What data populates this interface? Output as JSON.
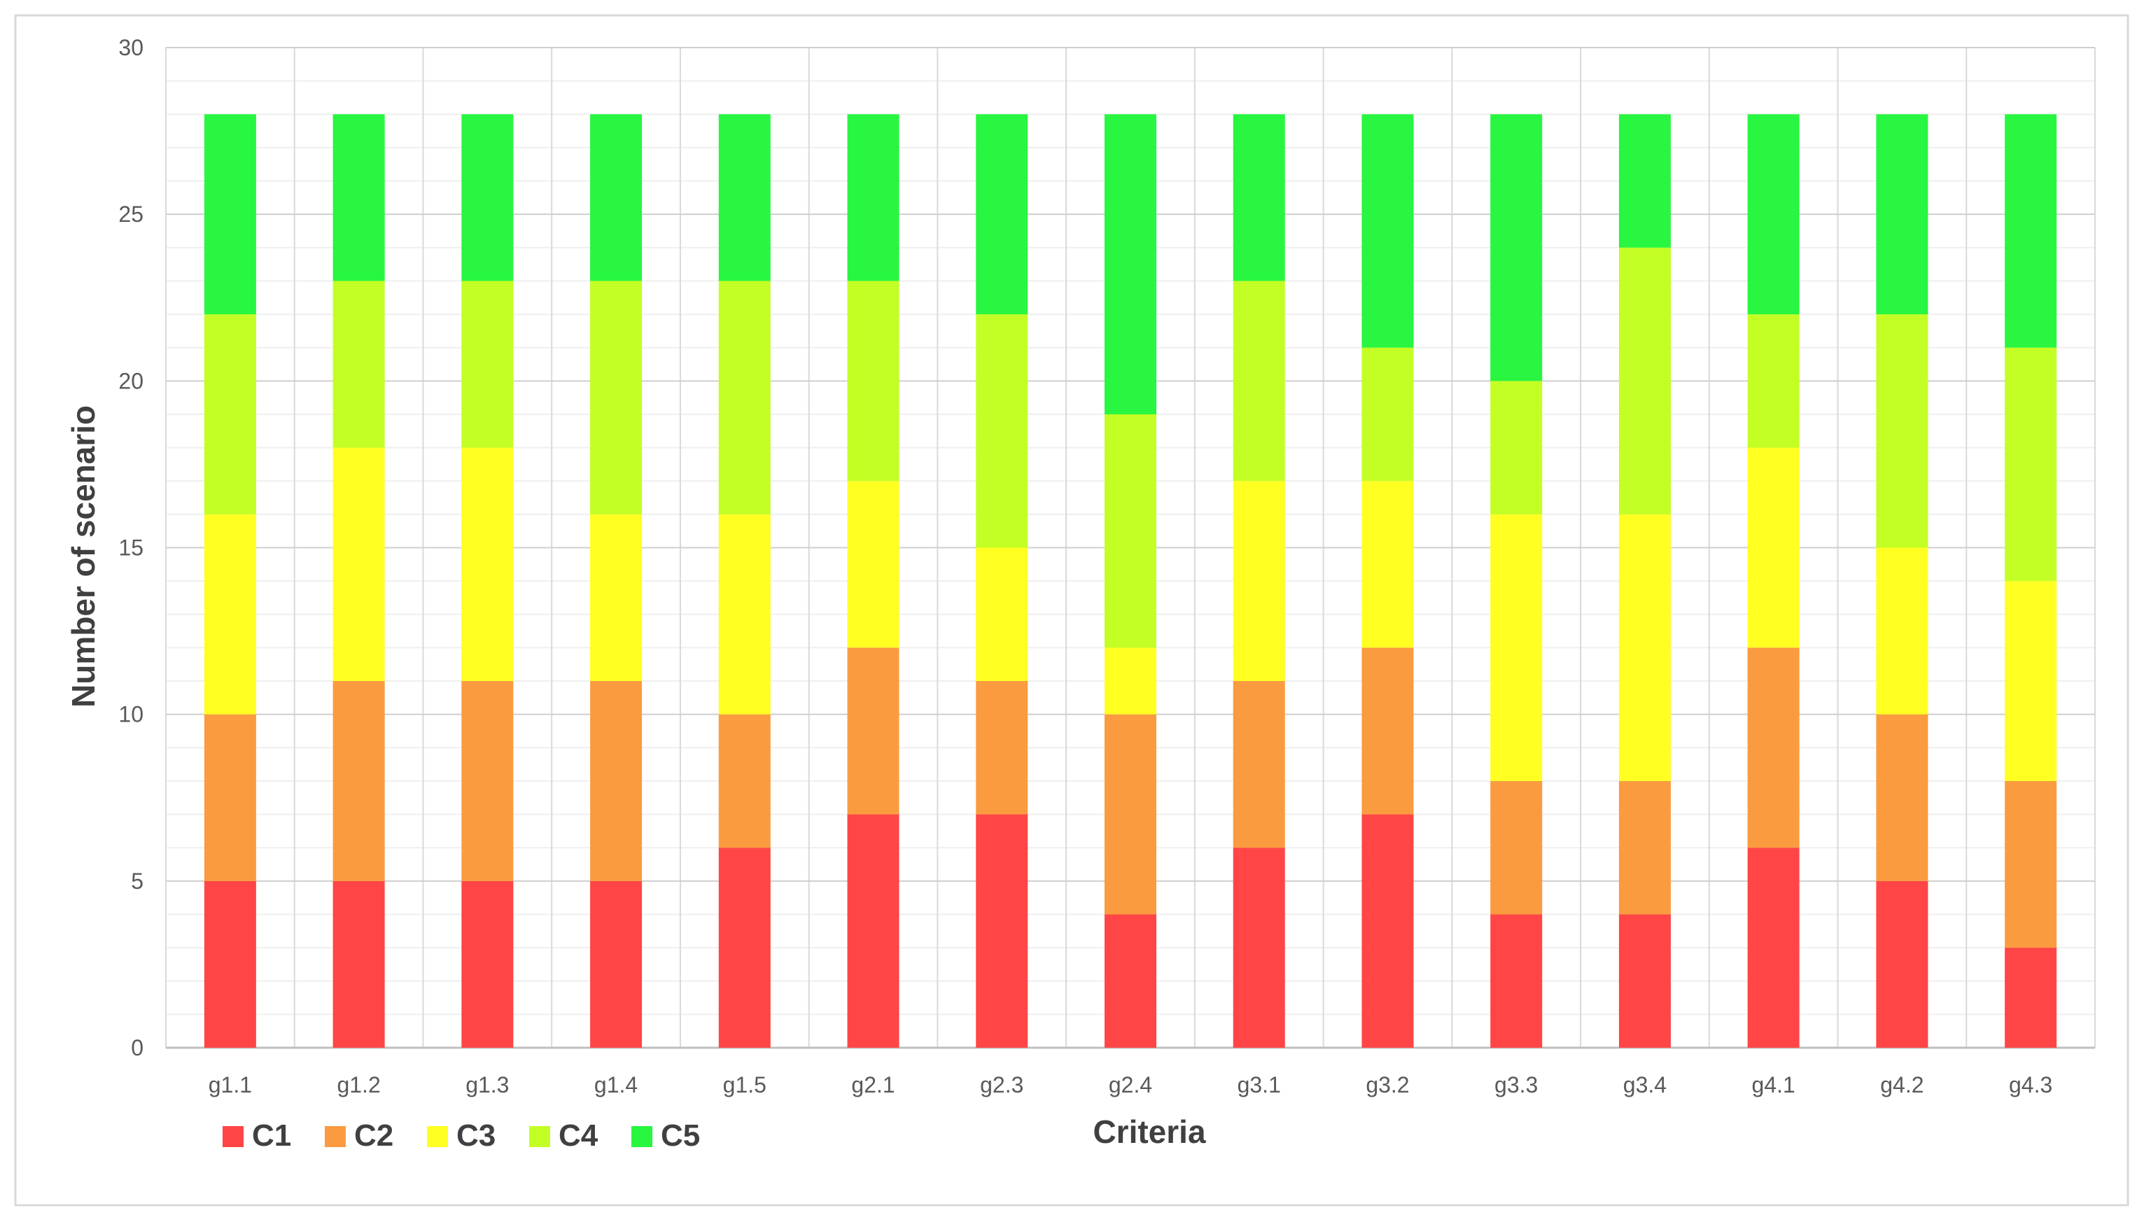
{
  "chart_data": {
    "type": "bar",
    "stacked": true,
    "title": "",
    "xlabel": "Criteria",
    "ylabel": "Number of scenario",
    "ylim": [
      0,
      30
    ],
    "yticks": [
      0,
      5,
      10,
      15,
      20,
      25,
      30
    ],
    "ytick_labels": [
      "0",
      "5",
      "10",
      "15",
      "20",
      "25",
      "30"
    ],
    "grid": true,
    "legend_position": "bottom-left",
    "categories": [
      "g1.1",
      "g1.2",
      "g1.3",
      "g1.4",
      "g1.5",
      "g2.1",
      "g2.3",
      "g2.4",
      "g3.1",
      "g3.2",
      "g3.3",
      "g3.4",
      "g4.1",
      "g4.2",
      "g4.3"
    ],
    "series": [
      {
        "name": "C1",
        "color": "#ff4545",
        "values": [
          5,
          5,
          5,
          5,
          6,
          7,
          7,
          4,
          6,
          7,
          4,
          4,
          6,
          5,
          3
        ]
      },
      {
        "name": "C2",
        "color": "#fb9b3f",
        "values": [
          5,
          6,
          6,
          6,
          4,
          5,
          4,
          6,
          5,
          5,
          4,
          4,
          6,
          5,
          5
        ]
      },
      {
        "name": "C3",
        "color": "#ffff22",
        "values": [
          6,
          7,
          7,
          5,
          6,
          5,
          4,
          2,
          6,
          5,
          8,
          8,
          6,
          5,
          6
        ]
      },
      {
        "name": "C4",
        "color": "#c3ff24",
        "values": [
          6,
          5,
          5,
          7,
          7,
          6,
          7,
          7,
          6,
          4,
          4,
          8,
          4,
          7,
          7
        ]
      },
      {
        "name": "C5",
        "color": "#28f640",
        "values": [
          6,
          5,
          5,
          5,
          5,
          5,
          6,
          9,
          5,
          7,
          8,
          4,
          6,
          6,
          7
        ]
      }
    ]
  }
}
